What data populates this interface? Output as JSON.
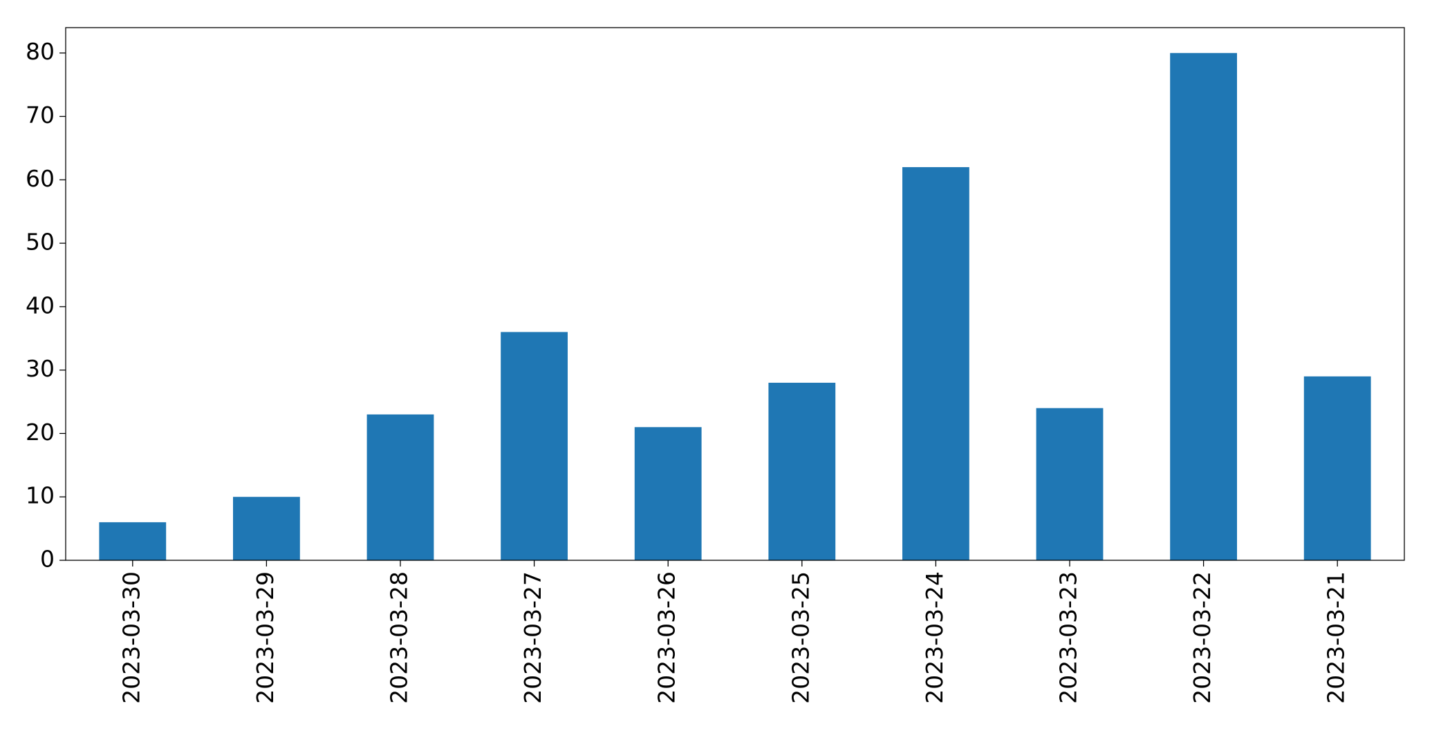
{
  "chart_data": {
    "type": "bar",
    "categories": [
      "2023-03-30",
      "2023-03-29",
      "2023-03-28",
      "2023-03-27",
      "2023-03-26",
      "2023-03-25",
      "2023-03-24",
      "2023-03-23",
      "2023-03-22",
      "2023-03-21"
    ],
    "values": [
      6,
      10,
      23,
      36,
      21,
      28,
      62,
      24,
      80,
      29
    ],
    "color": "#1f77b4",
    "ylim": [
      0,
      84
    ],
    "yticks": [
      0,
      10,
      20,
      30,
      40,
      50,
      60,
      70,
      80
    ],
    "grid": false
  }
}
